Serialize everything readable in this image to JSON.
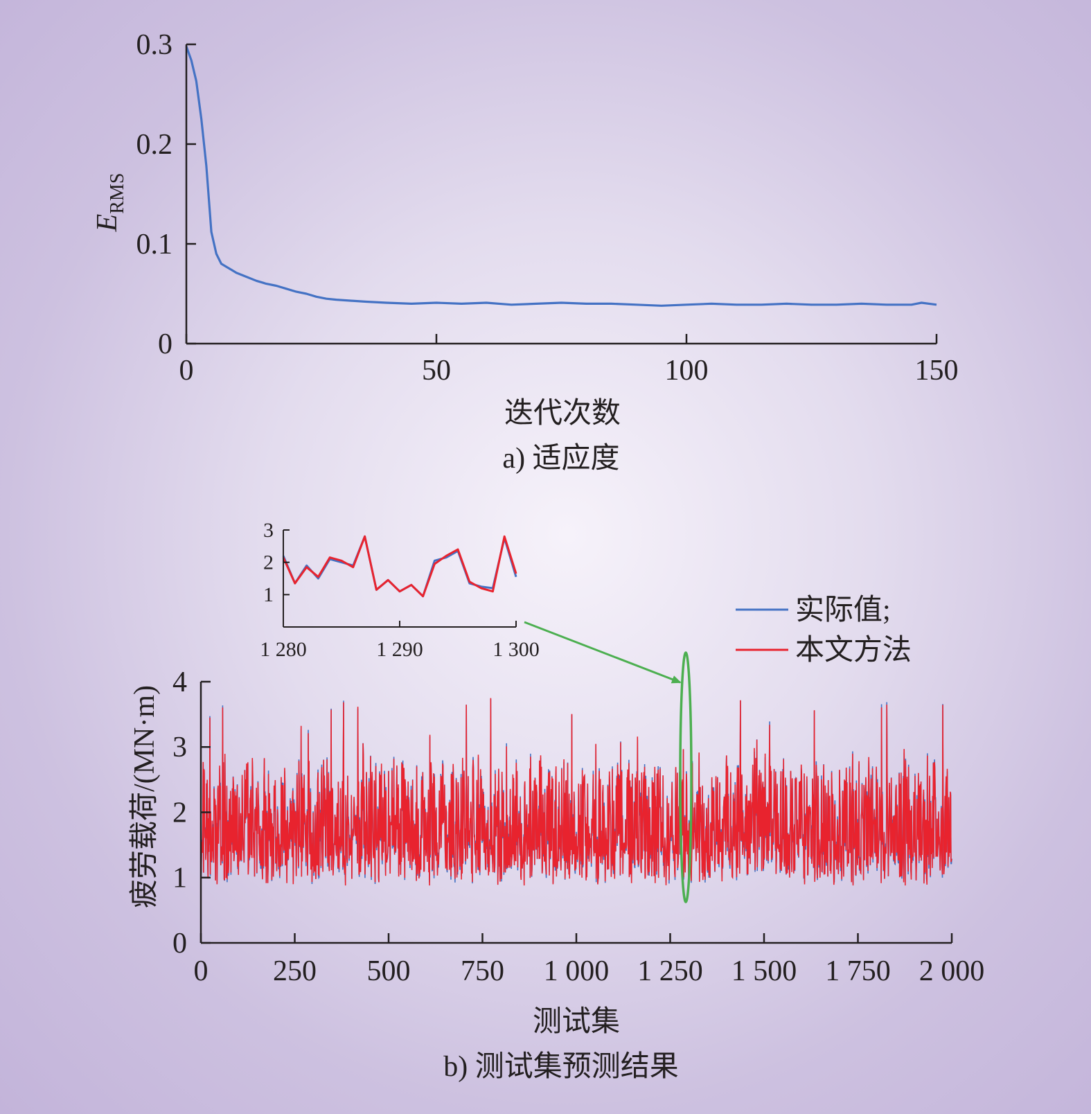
{
  "colors": {
    "actual": "#4472c4",
    "predicted": "#e8232e",
    "zoom": "#4caf50",
    "axis": "#231f20"
  },
  "chart_data": [
    {
      "type": "line",
      "caption": "a) 适应度",
      "xlabel": "迭代次数",
      "ylabel": "E",
      "ylabel_sub": "RMS",
      "xlim": [
        0,
        150
      ],
      "ylim": [
        0,
        0.3
      ],
      "xticks": [
        0,
        50,
        100,
        150
      ],
      "xtick_labels": [
        "0",
        "50",
        "100",
        "150"
      ],
      "yticks": [
        0,
        0.1,
        0.2,
        0.3
      ],
      "ytick_labels": [
        "0",
        "0.1",
        "0.2",
        "0.3"
      ],
      "grid": false,
      "series": [
        {
          "x": [
            0,
            1,
            2,
            3,
            4,
            5,
            6,
            7,
            8,
            9,
            10,
            12,
            14,
            16,
            18,
            20,
            22,
            24,
            26,
            28,
            30,
            33,
            36,
            40,
            45,
            50,
            55,
            60,
            65,
            70,
            75,
            80,
            85,
            90,
            95,
            100,
            105,
            110,
            115,
            120,
            125,
            130,
            135,
            140,
            145,
            147,
            150
          ],
          "y": [
            0.298,
            0.284,
            0.263,
            0.225,
            0.178,
            0.112,
            0.09,
            0.08,
            0.077,
            0.074,
            0.071,
            0.067,
            0.063,
            0.06,
            0.058,
            0.055,
            0.052,
            0.05,
            0.047,
            0.045,
            0.044,
            0.043,
            0.042,
            0.041,
            0.04,
            0.041,
            0.04,
            0.041,
            0.039,
            0.04,
            0.041,
            0.04,
            0.04,
            0.039,
            0.038,
            0.039,
            0.04,
            0.039,
            0.039,
            0.04,
            0.039,
            0.039,
            0.04,
            0.039,
            0.039,
            0.041,
            0.039
          ]
        }
      ]
    },
    {
      "type": "line",
      "caption": "b) 测试集预测结果",
      "xlabel": "测试集",
      "ylabel": "疲劳载荷/(MN·m)",
      "xlim": [
        0,
        2000
      ],
      "ylim": [
        0,
        4
      ],
      "xticks": [
        0,
        250,
        500,
        750,
        1000,
        1250,
        1500,
        1750,
        2000
      ],
      "xtick_labels": [
        "0",
        "250",
        "500",
        "750",
        "1 000",
        "1 250",
        "1 500",
        "1 750",
        "2 000"
      ],
      "yticks": [
        0,
        1,
        2,
        3,
        4
      ],
      "ytick_labels": [
        "0",
        "1",
        "2",
        "3",
        "4"
      ],
      "legend": {
        "position": "top-right",
        "entries": [
          "实际值;",
          "本文方法"
        ]
      },
      "series_note": "2000-point noisy series, values ranging roughly 0.9 to 3.8, centered near 1.9; the two series overlap almost completely",
      "highlight": {
        "x_range": [
          1280,
          1300
        ]
      }
    },
    {
      "type": "line",
      "role": "inset",
      "xlim": [
        1280,
        1300
      ],
      "ylim": [
        0,
        3
      ],
      "xticks": [
        1280,
        1290,
        1300
      ],
      "xtick_labels": [
        "1 280",
        "1 290",
        "1 300"
      ],
      "yticks": [
        1,
        2,
        3
      ],
      "ytick_labels": [
        "1",
        "2",
        "3"
      ],
      "x": [
        1280,
        1281,
        1282,
        1283,
        1284,
        1285,
        1286,
        1287,
        1288,
        1289,
        1290,
        1291,
        1292,
        1293,
        1294,
        1295,
        1296,
        1297,
        1298,
        1299,
        1300
      ],
      "series": [
        {
          "name": "实际值;",
          "values": [
            2.2,
            1.35,
            1.9,
            1.5,
            2.1,
            2.0,
            1.9,
            2.8,
            1.15,
            1.45,
            1.1,
            1.3,
            0.95,
            2.05,
            2.15,
            2.35,
            1.35,
            1.25,
            1.2,
            2.75,
            1.55
          ]
        },
        {
          "name": "本文方法",
          "values": [
            2.15,
            1.35,
            1.85,
            1.55,
            2.15,
            2.05,
            1.85,
            2.8,
            1.15,
            1.45,
            1.1,
            1.3,
            0.95,
            1.95,
            2.2,
            2.4,
            1.4,
            1.2,
            1.1,
            2.8,
            1.65
          ]
        }
      ]
    }
  ]
}
